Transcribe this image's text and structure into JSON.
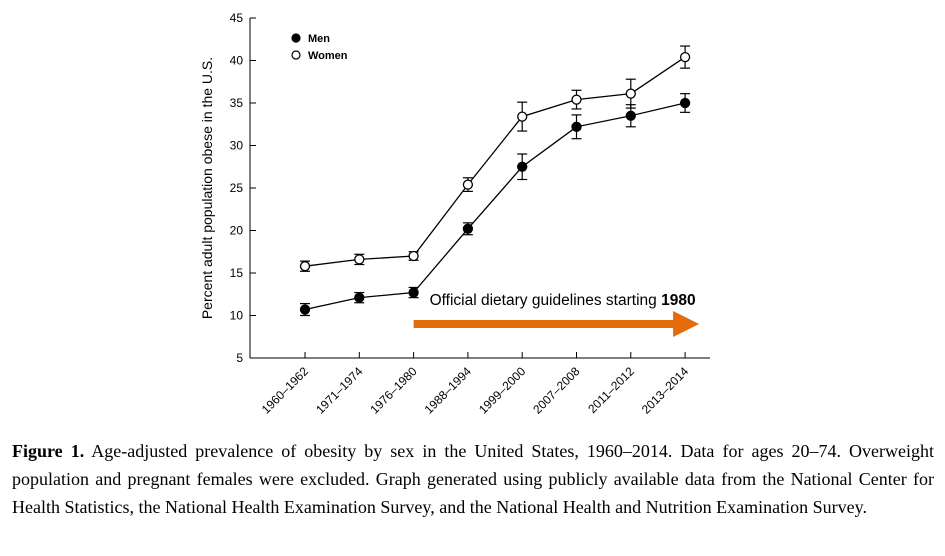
{
  "chart_data": {
    "type": "line",
    "ylabel": "Percent adult population obese in the U.S.",
    "ylim": [
      5,
      45
    ],
    "yticks": [
      5,
      10,
      15,
      20,
      25,
      30,
      35,
      40,
      45
    ],
    "categories": [
      "1960–1962",
      "1971–1974",
      "1976–1980",
      "1988–1994",
      "1999–2000",
      "2007–2008",
      "2011–2012",
      "2013–2014"
    ],
    "legend_position": "top-left",
    "grid": false,
    "series": [
      {
        "name": "Men",
        "marker": "filled-circle",
        "values": [
          10.7,
          12.1,
          12.7,
          20.2,
          27.5,
          32.2,
          33.5,
          35.0
        ],
        "error": [
          0.7,
          0.6,
          0.6,
          0.7,
          1.5,
          1.4,
          1.3,
          1.1
        ]
      },
      {
        "name": "Women",
        "marker": "open-circle",
        "values": [
          15.8,
          16.6,
          17.0,
          25.4,
          33.4,
          35.4,
          36.1,
          40.4
        ],
        "error": [
          0.6,
          0.6,
          0.5,
          0.8,
          1.7,
          1.1,
          1.7,
          1.3
        ]
      }
    ],
    "annotation": {
      "text_regular": "Official dietary guidelines starting ",
      "text_bold": "1980",
      "arrow_from": "1976–1980",
      "arrow_to": "2013–2014",
      "arrow_y": 9.0,
      "arrow_color": "#e46c0a"
    }
  },
  "caption": {
    "label": "Figure 1.",
    "text": " Age-adjusted prevalence of obesity by sex in the United States, 1960–2014. Data for ages 20–74. Overweight population and pregnant females were excluded. Graph generated using publicly available data from the National Center for Health Statistics, the National Health Examination Survey, and the National Health and Nutrition Examination Survey."
  }
}
